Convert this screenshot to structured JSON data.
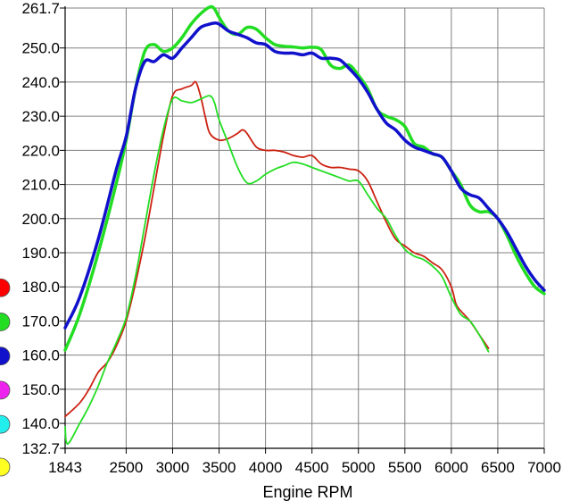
{
  "chart_data": {
    "type": "line",
    "title": "",
    "xlabel": "Engine RPM",
    "ylabel": "",
    "xlim": [
      1843,
      7000
    ],
    "ylim": [
      132.7,
      261.7
    ],
    "grid": true,
    "x_ticks": [
      1843,
      2500,
      3000,
      3500,
      4000,
      4500,
      5000,
      5500,
      6000,
      6500,
      7000
    ],
    "x_tick_labels": [
      "1843",
      "2500",
      "3000",
      "3500",
      "4000",
      "4500",
      "5000",
      "5500",
      "6000",
      "6500",
      "7000"
    ],
    "y_ticks": [
      132.7,
      140.0,
      150.0,
      160.0,
      170.0,
      180.0,
      190.0,
      200.0,
      210.0,
      220.0,
      230.0,
      240.0,
      250.0,
      261.7
    ],
    "y_tick_labels": [
      "132.7",
      "140.0",
      "150.0",
      "160.0",
      "170.0",
      "180.0",
      "190.0",
      "200.0",
      "210.0",
      "220.0",
      "230.0",
      "240.0",
      "250.0",
      "261.7"
    ],
    "legend_markers": [
      {
        "color": "#ff0000"
      },
      {
        "color": "#22dd22"
      },
      {
        "color": "#1111cc"
      },
      {
        "color": "#ee22ee"
      },
      {
        "color": "#22eeee"
      },
      {
        "color": "#ffff22"
      }
    ],
    "series": [
      {
        "color": "#22dd22",
        "width": 3.5,
        "x": [
          1843,
          2000,
          2200,
          2400,
          2500,
          2600,
          2700,
          2800,
          2900,
          3000,
          3100,
          3200,
          3300,
          3400,
          3450,
          3500,
          3600,
          3700,
          3800,
          3900,
          4000,
          4100,
          4200,
          4300,
          4400,
          4500,
          4600,
          4700,
          4800,
          4900,
          5000,
          5100,
          5200,
          5300,
          5400,
          5500,
          5600,
          5700,
          5800,
          5900,
          6000,
          6100,
          6200,
          6300,
          6400,
          6500,
          6600,
          6700,
          6800,
          6900,
          7000
        ],
        "y": [
          161.5,
          172,
          190,
          211,
          223,
          238,
          249,
          251,
          249,
          250,
          253,
          257,
          260,
          262,
          261.5,
          259,
          255,
          254,
          256,
          255.5,
          253,
          251,
          250.5,
          250.3,
          250,
          250.2,
          249.5,
          245,
          244,
          245,
          242,
          238,
          232,
          230,
          229,
          227,
          222,
          221,
          219,
          218,
          214,
          210,
          204,
          202,
          202,
          200,
          195,
          189,
          184,
          180,
          178
        ]
      },
      {
        "color": "#1111cc",
        "width": 3.5,
        "x": [
          1843,
          2000,
          2200,
          2400,
          2500,
          2600,
          2700,
          2800,
          2900,
          3000,
          3100,
          3200,
          3300,
          3400,
          3450,
          3500,
          3600,
          3700,
          3800,
          3900,
          4000,
          4100,
          4200,
          4300,
          4400,
          4500,
          4600,
          4700,
          4800,
          4900,
          5000,
          5100,
          5200,
          5300,
          5400,
          5500,
          5600,
          5700,
          5800,
          5900,
          6000,
          6100,
          6200,
          6300,
          6400,
          6500,
          6600,
          6700,
          6800,
          6900,
          7000
        ],
        "y": [
          168,
          177,
          194,
          215,
          224,
          238,
          246,
          246,
          248,
          247,
          250,
          253,
          256,
          257,
          257.3,
          257,
          255,
          254,
          253,
          251.5,
          251,
          249,
          248.5,
          248.5,
          248,
          248.5,
          247,
          247,
          246.5,
          244,
          241,
          237,
          232,
          228,
          226,
          223,
          221,
          220,
          219,
          218,
          214,
          209,
          207,
          206,
          203,
          200,
          196,
          191,
          186,
          182,
          179
        ]
      },
      {
        "color": "#cc2211",
        "width": 1.8,
        "x": [
          1843,
          2000,
          2100,
          2200,
          2300,
          2400,
          2500,
          2600,
          2700,
          2800,
          2900,
          3000,
          3100,
          3200,
          3250,
          3300,
          3350,
          3400,
          3500,
          3600,
          3700,
          3750,
          3800,
          3900,
          4000,
          4100,
          4200,
          4300,
          4400,
          4500,
          4600,
          4700,
          4800,
          4900,
          5000,
          5100,
          5200,
          5300,
          5400,
          5500,
          5600,
          5700,
          5800,
          5900,
          6000,
          6050,
          6100,
          6200,
          6300,
          6400
        ],
        "y": [
          142,
          146,
          150,
          155,
          158,
          163,
          170,
          181,
          194,
          209,
          224,
          236,
          238,
          239,
          240,
          236,
          230,
          225,
          223,
          223.5,
          225,
          226,
          225,
          221,
          220,
          220,
          219.5,
          218.5,
          218,
          218.5,
          216,
          215,
          215,
          214.5,
          214,
          211,
          205,
          199,
          194,
          192,
          190,
          189,
          187,
          185,
          180,
          175,
          173,
          170,
          166,
          162
        ]
      },
      {
        "color": "#22dd22",
        "width": 1.8,
        "x": [
          1843,
          1870,
          2000,
          2100,
          2200,
          2300,
          2400,
          2500,
          2600,
          2700,
          2800,
          2900,
          3000,
          3100,
          3200,
          3300,
          3400,
          3450,
          3500,
          3600,
          3700,
          3800,
          3900,
          4000,
          4100,
          4200,
          4300,
          4400,
          4500,
          4600,
          4700,
          4800,
          4900,
          5000,
          5100,
          5200,
          5300,
          5400,
          5500,
          5600,
          5700,
          5800,
          5900,
          6000,
          6100,
          6200,
          6300,
          6400
        ],
        "y": [
          139,
          134,
          140,
          145,
          151,
          158,
          164,
          171,
          183,
          198,
          213,
          226,
          235,
          234.5,
          234,
          235,
          236,
          234,
          229,
          222,
          215,
          210.5,
          211,
          213,
          214.5,
          215.5,
          216.5,
          216,
          215,
          214,
          213,
          212,
          211,
          211,
          207,
          203,
          200,
          195,
          191,
          189,
          188,
          186,
          183,
          177,
          172,
          170,
          166,
          161
        ]
      }
    ]
  }
}
